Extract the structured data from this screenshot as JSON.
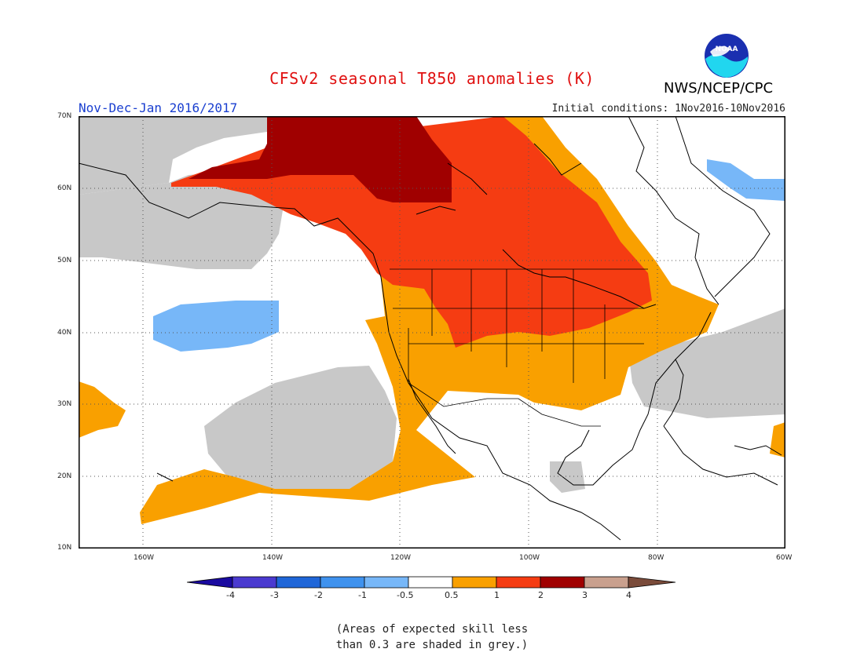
{
  "header": {
    "title": "CFSv2 seasonal T850 anomalies (K)",
    "period": "Nov-Dec-Jan 2016/2017",
    "initial_conditions": "Initial conditions: 1Nov2016-10Nov2016",
    "agency": "NWS/NCEP/CPC",
    "logo_text": "NOAA"
  },
  "map": {
    "lat_labels": [
      "70N",
      "60N",
      "50N",
      "40N",
      "30N",
      "20N",
      "10N"
    ],
    "lon_labels": [
      "160W",
      "140W",
      "120W",
      "100W",
      "80W",
      "60W"
    ],
    "lat_range": [
      10,
      70
    ],
    "lon_range": [
      -170,
      -60
    ],
    "grid": true,
    "colors": {
      "grey_low_skill": "#c8c8c8",
      "anom_0_5_to_1": "#f9a000",
      "anom_1_to_2": "#f53c12",
      "anom_2_to_3": "#a00000",
      "anom_neg_0_5_to_neg_1": "#77b7f8"
    }
  },
  "colorbar": {
    "labels": [
      "-4",
      "-3",
      "-2",
      "-1",
      "-0.5",
      "0.5",
      "1",
      "2",
      "3",
      "4"
    ],
    "colors": [
      "#1a0aa0",
      "#4a3ad0",
      "#1f66d8",
      "#3f92ee",
      "#77b7f8",
      "#ffffff",
      "#f9a000",
      "#f53c12",
      "#a00000",
      "#c9a08e",
      "#7a4b3a"
    ]
  },
  "note": {
    "line1": "(Areas of expected skill less",
    "line2": "than 0.3 are shaded in grey.)"
  }
}
